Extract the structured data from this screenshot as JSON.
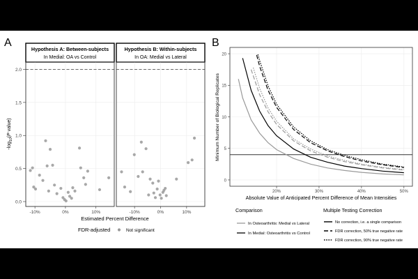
{
  "figure": {
    "background": "#ffffff",
    "letterbox": "#000000"
  },
  "chart_data": [
    {
      "panel_label": "A",
      "type": "scatter",
      "ylabel": "-log10(P value)",
      "xlabel": "Estimated Percent Difference",
      "ylim": [
        0,
        2.1
      ],
      "yticks": [
        0.0,
        0.5,
        1.0,
        1.5,
        2.0
      ],
      "ytick_labels": [
        "0.0",
        "0.5",
        "1.0",
        "1.5",
        "2.0"
      ],
      "threshold_line": 2.0,
      "legend": {
        "title": "FDR-adjusted",
        "entries": [
          "Not significant"
        ],
        "color": "#999999"
      },
      "facets": [
        {
          "title": "Hypothesis A: Between-subjects",
          "subtitle": "In Medial: OA vs Control",
          "xlim": [
            -13,
            16
          ],
          "xticks": [
            -10,
            0,
            10
          ],
          "xtick_labels": [
            "-10%",
            "0%",
            "10%"
          ],
          "points": [
            {
              "x": -11.5,
              "y": 0.47
            },
            {
              "x": -10.8,
              "y": 0.51
            },
            {
              "x": -10.4,
              "y": 0.22
            },
            {
              "x": -9.8,
              "y": 0.19
            },
            {
              "x": -8.5,
              "y": 0.4
            },
            {
              "x": -7.4,
              "y": 0.32
            },
            {
              "x": -6.5,
              "y": 0.92
            },
            {
              "x": -6.0,
              "y": 0.54
            },
            {
              "x": -5.5,
              "y": 0.16
            },
            {
              "x": -5.0,
              "y": 0.79
            },
            {
              "x": -4.2,
              "y": 0.55
            },
            {
              "x": -3.6,
              "y": 0.25
            },
            {
              "x": -2.8,
              "y": 0.12
            },
            {
              "x": -1.5,
              "y": 0.2
            },
            {
              "x": -0.8,
              "y": 0.06
            },
            {
              "x": -0.3,
              "y": 0.03
            },
            {
              "x": 0.2,
              "y": 0.01
            },
            {
              "x": 0.9,
              "y": 0.14
            },
            {
              "x": 1.4,
              "y": 0.08
            },
            {
              "x": 2.0,
              "y": 0.05
            },
            {
              "x": 2.4,
              "y": 0.21
            },
            {
              "x": 3.1,
              "y": 0.16
            },
            {
              "x": 4.6,
              "y": 0.81
            },
            {
              "x": 5.0,
              "y": 0.51
            },
            {
              "x": 6.0,
              "y": 0.36
            },
            {
              "x": 6.6,
              "y": 0.26
            },
            {
              "x": 7.3,
              "y": 0.46
            },
            {
              "x": 11.2,
              "y": 0.18
            },
            {
              "x": 14.2,
              "y": 0.36
            }
          ]
        },
        {
          "title": "Hypothesis B: Within-subjects",
          "subtitle": "In OA: Medial vs Lateral",
          "xlim": [
            -17,
            17
          ],
          "xticks": [
            -10,
            0,
            10
          ],
          "xtick_labels": [
            "-10%",
            "0%",
            "10%"
          ],
          "points": [
            {
              "x": -15.0,
              "y": 0.45
            },
            {
              "x": -13.8,
              "y": 0.22
            },
            {
              "x": -11.6,
              "y": 0.15
            },
            {
              "x": -10.1,
              "y": 0.71
            },
            {
              "x": -8.6,
              "y": 0.38
            },
            {
              "x": -7.4,
              "y": 0.9
            },
            {
              "x": -6.9,
              "y": 0.45
            },
            {
              "x": -5.6,
              "y": 0.8
            },
            {
              "x": -4.6,
              "y": 0.1
            },
            {
              "x": -4.0,
              "y": 0.34
            },
            {
              "x": -3.0,
              "y": 0.28
            },
            {
              "x": -2.6,
              "y": 0.13
            },
            {
              "x": -2.0,
              "y": 0.06
            },
            {
              "x": -1.3,
              "y": 0.19
            },
            {
              "x": -0.8,
              "y": 0.31
            },
            {
              "x": -0.2,
              "y": 0.1
            },
            {
              "x": 0.3,
              "y": 0.05
            },
            {
              "x": 0.9,
              "y": 0.14
            },
            {
              "x": 1.3,
              "y": 0.17
            },
            {
              "x": 1.8,
              "y": 0.2
            },
            {
              "x": 2.2,
              "y": 0.09
            },
            {
              "x": 6.1,
              "y": 0.34
            },
            {
              "x": 10.6,
              "y": 0.59
            },
            {
              "x": 12.1,
              "y": 0.63
            },
            {
              "x": 13.0,
              "y": 0.96
            }
          ]
        }
      ]
    },
    {
      "panel_label": "B",
      "type": "line",
      "xlabel": "Absolute Value of Anticipated Percent Difference of Mean Intensities",
      "ylabel": "Minimum Number of Biological Replicates",
      "xlim": [
        9,
        52
      ],
      "ylim": [
        -1,
        21
      ],
      "xticks": [
        20,
        30,
        40,
        50
      ],
      "xtick_labels": [
        "20%",
        "30%",
        "40%",
        "50%"
      ],
      "yticks": [
        0,
        5,
        10,
        15,
        20
      ],
      "ytick_labels": [
        "0",
        "5",
        "10",
        "15",
        "20"
      ],
      "reference_line": 4,
      "series": [
        {
          "name": "OA Medial vs Lateral, no correction",
          "comparison": 0,
          "correction": 0,
          "x": [
            11,
            12,
            14,
            16,
            18,
            20,
            24,
            28,
            32,
            36,
            40,
            45,
            50
          ],
          "y": [
            16,
            13,
            9.5,
            7.4,
            5.9,
            4.8,
            3.4,
            2.5,
            1.9,
            1.5,
            1.2,
            0.95,
            0.8
          ]
        },
        {
          "name": "OA Medial vs Lateral, FDR 50%",
          "comparison": 0,
          "correction": 1,
          "x": [
            14,
            16,
            18,
            20,
            24,
            28,
            32,
            36,
            40,
            45,
            50
          ],
          "y": [
            17.5,
            13.5,
            10.8,
            8.8,
            6.2,
            4.6,
            3.6,
            2.9,
            2.4,
            1.9,
            1.55
          ]
        },
        {
          "name": "OA Medial vs Lateral, FDR 90%",
          "comparison": 0,
          "correction": 2,
          "x": [
            14.5,
            16,
            18,
            20,
            24,
            28,
            32,
            36,
            40,
            45,
            50
          ],
          "y": [
            17.8,
            14.5,
            11.4,
            9.3,
            6.5,
            4.9,
            3.8,
            3.1,
            2.5,
            2.0,
            1.65
          ]
        },
        {
          "name": "Medial OA vs Control, no correction",
          "comparison": 1,
          "correction": 0,
          "x": [
            12,
            14,
            16,
            18,
            20,
            24,
            28,
            32,
            36,
            40,
            45,
            50
          ],
          "y": [
            19.3,
            14.2,
            10.9,
            8.6,
            7.0,
            4.9,
            3.6,
            2.8,
            2.2,
            1.8,
            1.4,
            1.15
          ]
        },
        {
          "name": "Medial OA vs Control, FDR 50%",
          "comparison": 1,
          "correction": 1,
          "x": [
            15.3,
            16,
            18,
            20,
            24,
            28,
            32,
            36,
            40,
            45,
            50
          ],
          "y": [
            19.8,
            18.0,
            14.2,
            11.5,
            8.0,
            5.9,
            4.6,
            3.7,
            3.0,
            2.4,
            1.95
          ]
        },
        {
          "name": "Medial OA vs Control, FDR 90%",
          "comparison": 1,
          "correction": 2,
          "x": [
            15.6,
            16,
            18,
            20,
            24,
            28,
            32,
            36,
            40,
            45,
            50
          ],
          "y": [
            19.9,
            18.9,
            14.9,
            12.0,
            8.4,
            6.2,
            4.8,
            3.9,
            3.2,
            2.5,
            2.05
          ]
        }
      ],
      "legends": {
        "comparison": {
          "title": "Comparison",
          "entries": [
            "In Osteoarthritis: Medial vs Lateral",
            "In Medial: Osteoarthritis vs Control"
          ],
          "colors": [
            "#999999",
            "#000000"
          ]
        },
        "correction": {
          "title": "Multiple Testing Correction",
          "entries": [
            "No correction, i.e. a single comparison",
            "FDR correction, 50% true negative rate",
            "FDR correction, 90% true negative rate"
          ],
          "dash": [
            "",
            "6,3",
            "1.6,1.6"
          ]
        }
      }
    }
  ]
}
